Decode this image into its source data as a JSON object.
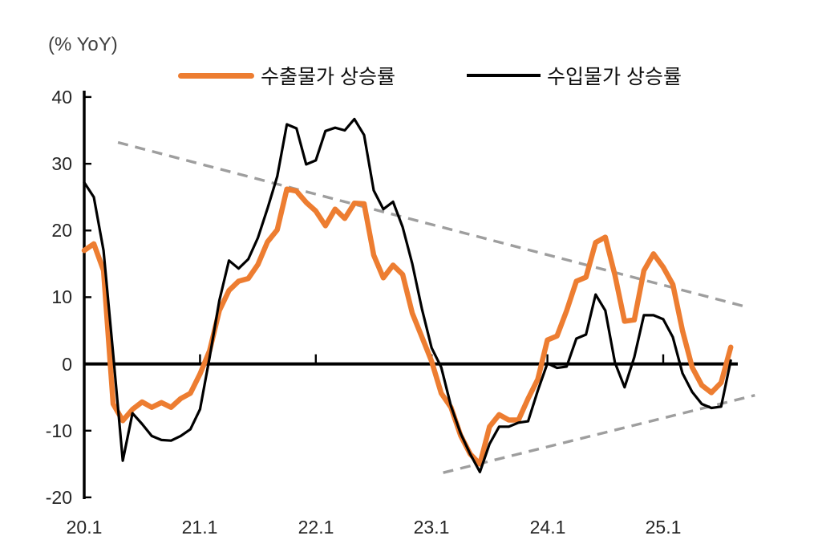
{
  "chart_data": {
    "type": "line",
    "unit_label": "(% YoY)",
    "x_frequency": "monthly",
    "ylim": [
      -20,
      40
    ],
    "grid": false,
    "legend_position": "top",
    "y_ticks": [
      {
        "value": 40,
        "label": "40"
      },
      {
        "value": 30,
        "label": "30"
      },
      {
        "value": 20,
        "label": "20"
      },
      {
        "value": 10,
        "label": "10"
      },
      {
        "value": 0,
        "label": "0"
      },
      {
        "value": -10,
        "label": "-10"
      },
      {
        "value": -20,
        "label": "-20"
      }
    ],
    "x_ticks": [
      {
        "month_index": 0,
        "label": "20.1"
      },
      {
        "month_index": 12,
        "label": "21.1"
      },
      {
        "month_index": 24,
        "label": "22.1"
      },
      {
        "month_index": 36,
        "label": "23.1"
      },
      {
        "month_index": 48,
        "label": "24.1"
      },
      {
        "month_index": 60,
        "label": "25.1"
      }
    ],
    "series": [
      {
        "name": "수출물가 상승률",
        "color": "#ED7D31",
        "values": [
          17,
          18,
          14,
          -6,
          -8.5,
          -6.8,
          -5.7,
          -6.5,
          -5.8,
          -6.5,
          -5.2,
          -4.4,
          -1.5,
          2,
          8,
          11,
          12.4,
          12.8,
          14.9,
          18.3,
          20.1,
          26.2,
          25.9,
          24.2,
          22.9,
          20.7,
          23.2,
          21.8,
          24.1,
          24,
          16.3,
          12.9,
          14.8,
          13.4,
          7.6,
          4,
          0.4,
          -4.4,
          -6.5,
          -10.7,
          -13.5,
          -15,
          -9.4,
          -7.6,
          -8.4,
          -8.4,
          -5.2,
          -2.3,
          3.6,
          4.2,
          8,
          12.4,
          13,
          18.2,
          19,
          13.3,
          6.4,
          6.6,
          14,
          16.5,
          14.5,
          11.9,
          5,
          -0.5,
          -3.2,
          -4.3,
          -2.8,
          2.5
        ]
      },
      {
        "name": "수입물가 상승률",
        "color": "#000000",
        "values": [
          27.2,
          25,
          17,
          1.5,
          -14.5,
          -7.4,
          -9,
          -10.8,
          -11.4,
          -11.5,
          -10.8,
          -9.8,
          -6.8,
          1,
          9.5,
          15.5,
          14.3,
          15.7,
          18.9,
          23.3,
          28.1,
          35.9,
          35.3,
          29.9,
          30.5,
          34.9,
          35.4,
          35,
          36.7,
          34.3,
          26,
          23.2,
          24.3,
          20.5,
          15,
          8.2,
          2.4,
          -0.5,
          -6.3,
          -10.4,
          -13.5,
          -16.2,
          -12,
          -9.4,
          -9.4,
          -8.8,
          -8.6,
          -4,
          0.1,
          -0.6,
          -0.4,
          3.8,
          4.4,
          10.4,
          8,
          0.2,
          -3.5,
          1,
          7.3,
          7.3,
          6.7,
          4,
          -1.4,
          -4.2,
          -6,
          -6.6,
          -6.4,
          0.5
        ]
      }
    ],
    "trend_lines": [
      {
        "name": "upper-trend",
        "color": "#9E9E9E",
        "from_month": 3.5,
        "from_value": 33.2,
        "to_month": 68.5,
        "to_value": 8.6
      },
      {
        "name": "lower-trend",
        "color": "#9E9E9E",
        "from_month": 37.2,
        "from_value": -16.3,
        "to_month": 69.5,
        "to_value": -4.7
      }
    ]
  }
}
